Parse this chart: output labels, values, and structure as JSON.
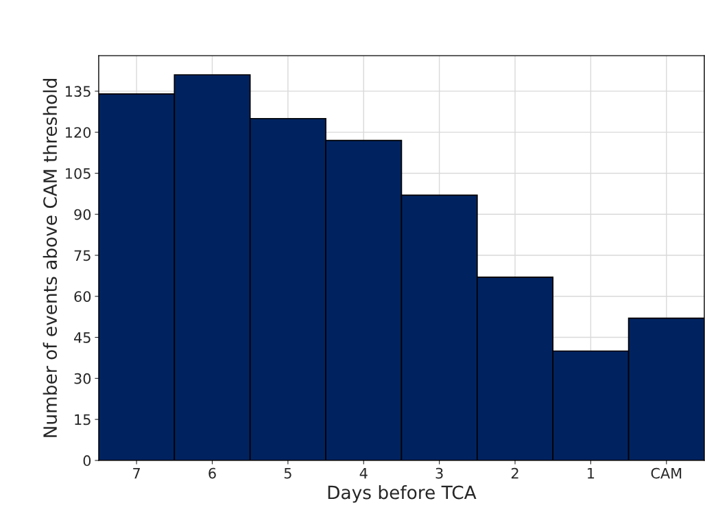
{
  "chart_data": {
    "type": "bar",
    "xlabel": "Days before TCA",
    "ylabel": "Number of events above CAM threshold",
    "categories": [
      "7",
      "6",
      "5",
      "4",
      "3",
      "2",
      "1",
      "CAM"
    ],
    "values": [
      134,
      141,
      125,
      117,
      97,
      67,
      40,
      52
    ],
    "color": "#002360",
    "ylim": [
      0,
      148
    ],
    "yticks": [
      0,
      15,
      30,
      45,
      60,
      75,
      90,
      105,
      120,
      135
    ],
    "grid": true
  }
}
